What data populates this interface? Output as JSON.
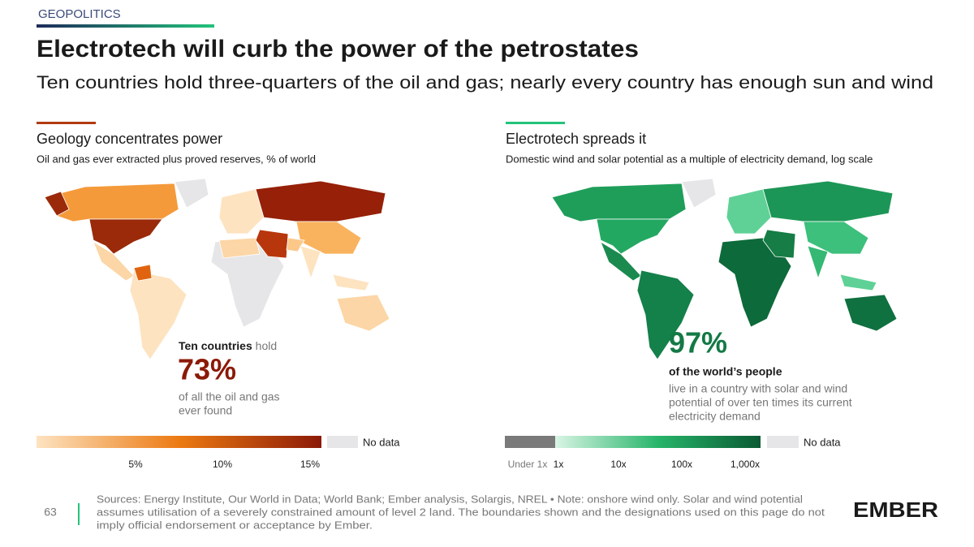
{
  "header": {
    "kicker": "GEOPOLITICS",
    "title": "Electrotech will curb the power of the petrostates",
    "subtitle": "Ten countries hold three-quarters of the oil and gas; nearly every country has enough sun and wind"
  },
  "left_panel": {
    "heading": "Geology concentrates power",
    "description": "Oil and gas ever extracted plus proved reserves, % of world",
    "callout": {
      "lead": "Ten countries",
      "lead_suffix": "hold",
      "figure": "73%",
      "text": [
        "of all the oil and gas",
        "ever found"
      ]
    },
    "legend": {
      "ticks": [
        "5%",
        "10%",
        "15%"
      ],
      "no_data": "No data"
    }
  },
  "right_panel": {
    "heading": "Electrotech spreads it",
    "description": "Domestic wind and solar potential as a multiple of electricity demand, log scale",
    "callout": {
      "figure": "97%",
      "lead": "of the world’s people",
      "text": [
        "live in a country with solar and wind",
        "potential of over ten times its current",
        "electricity demand"
      ]
    },
    "legend": {
      "ticks": [
        "Under 1x",
        "1x",
        "10x",
        "100x",
        "1,000x"
      ],
      "no_data": "No data"
    }
  },
  "footer": {
    "page": "63",
    "sources": [
      "Sources: Energy Institute, Our World in Data; World Bank; Ember analysis, Solargis, NREL • Note: onshore wind only. Solar and wind potential",
      "assumes utilisation of a severely constrained amount of level 2 land. The boundaries shown and the designations used on this page do not",
      "imply official endorsement or acceptance by Ember."
    ],
    "logo": "EMBER"
  }
}
